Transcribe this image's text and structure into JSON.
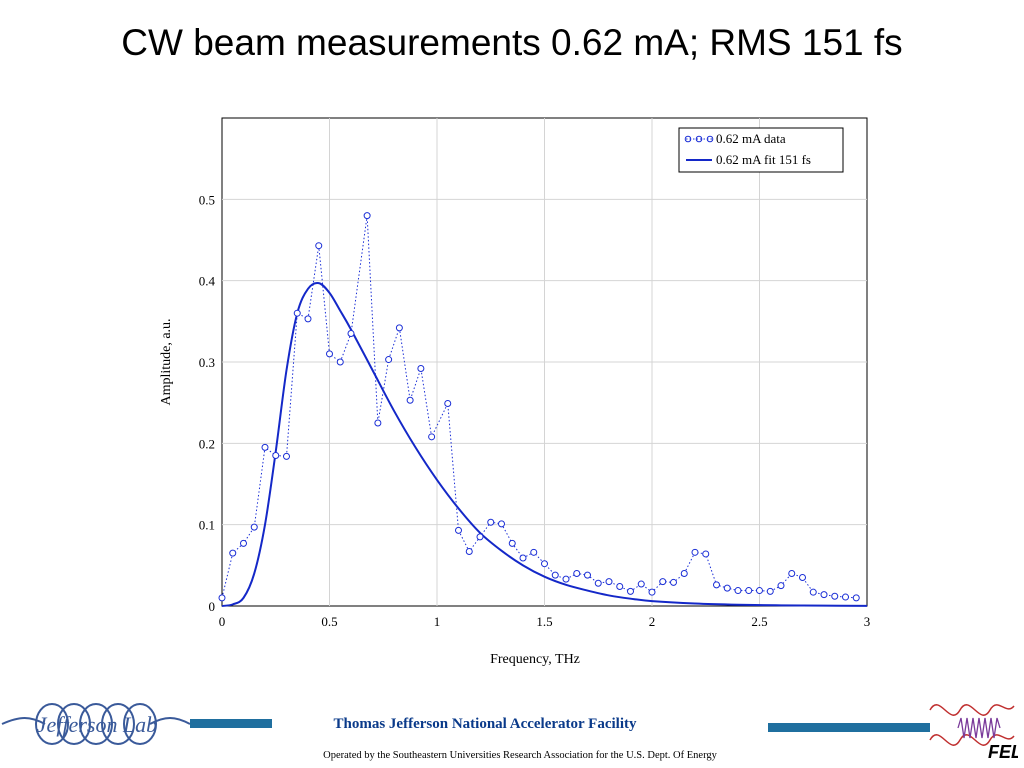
{
  "slide": {
    "title": "CW beam measurements 0.62 mA; RMS 151 fs"
  },
  "colors": {
    "data_series": "#1a2ed6",
    "fit_series": "#1428c8",
    "footer_bar": "#1f6f9f",
    "lab_name": "#0a3a8a",
    "logo_blue": "#3a5a9a",
    "fel_red": "#c03030",
    "fel_purple": "#7a3a9a"
  },
  "chart_data": {
    "type": "line",
    "title": "",
    "xlabel": "Frequency, THz",
    "ylabel": "Amplitude, a.u.",
    "xlim": [
      0,
      3
    ],
    "ylim": [
      0,
      0.6
    ],
    "xticks": [
      "0",
      "0.5",
      "1",
      "1.5",
      "2",
      "2.5",
      "3"
    ],
    "yticks": [
      "0",
      "0.1",
      "0.2",
      "0.3",
      "0.4",
      "0.5"
    ],
    "grid": true,
    "legend_position": "top-right",
    "series": [
      {
        "name": "0.62 mA data",
        "style": "dotted-line-circles",
        "x": [
          0,
          0.05,
          0.1,
          0.15,
          0.2,
          0.25,
          0.3,
          0.35,
          0.4,
          0.45,
          0.5,
          0.55,
          0.6,
          0.675,
          0.725,
          0.775,
          0.825,
          0.875,
          0.925,
          0.975,
          1.05,
          1.1,
          1.15,
          1.2,
          1.25,
          1.3,
          1.35,
          1.4,
          1.45,
          1.5,
          1.55,
          1.6,
          1.65,
          1.7,
          1.75,
          1.8,
          1.85,
          1.9,
          1.95,
          2.0,
          2.05,
          2.1,
          2.15,
          2.2,
          2.25,
          2.3,
          2.35,
          2.4,
          2.45,
          2.5,
          2.55,
          2.6,
          2.65,
          2.7,
          2.75,
          2.8,
          2.85,
          2.9,
          2.95
        ],
        "y": [
          0.01,
          0.065,
          0.077,
          0.097,
          0.195,
          0.185,
          0.184,
          0.36,
          0.353,
          0.443,
          0.31,
          0.3,
          0.335,
          0.48,
          0.225,
          0.303,
          0.342,
          0.253,
          0.292,
          0.208,
          0.249,
          0.093,
          0.067,
          0.085,
          0.103,
          0.101,
          0.077,
          0.059,
          0.066,
          0.052,
          0.038,
          0.033,
          0.04,
          0.038,
          0.028,
          0.03,
          0.024,
          0.018,
          0.027,
          0.017,
          0.03,
          0.029,
          0.04,
          0.066,
          0.064,
          0.026,
          0.022,
          0.019,
          0.019,
          0.019,
          0.018,
          0.025,
          0.04,
          0.035,
          0.017,
          0.014,
          0.012,
          0.011,
          0.01
        ]
      },
      {
        "name": "0.62 mA fit 151 fs",
        "style": "solid-line",
        "x": [
          0,
          0.05,
          0.1,
          0.15,
          0.2,
          0.25,
          0.3,
          0.35,
          0.4,
          0.45,
          0.5,
          0.55,
          0.6,
          0.7,
          0.8,
          0.9,
          1.0,
          1.1,
          1.2,
          1.3,
          1.4,
          1.5,
          1.6,
          1.7,
          1.8,
          1.9,
          2.0,
          2.2,
          2.4,
          2.6,
          2.8,
          3.0
        ],
        "y": [
          0.0,
          0.002,
          0.01,
          0.04,
          0.1,
          0.19,
          0.29,
          0.36,
          0.39,
          0.397,
          0.385,
          0.363,
          0.34,
          0.29,
          0.24,
          0.195,
          0.155,
          0.12,
          0.09,
          0.068,
          0.05,
          0.036,
          0.026,
          0.019,
          0.013,
          0.009,
          0.006,
          0.003,
          0.0015,
          0.0008,
          0.0004,
          0.0002
        ]
      }
    ]
  },
  "footer": {
    "lab_name": "Thomas Jefferson National Accelerator Facility",
    "operated_by": "Operated by the Southeastern Universities Research Association for the U.S. Dept. Of Energy",
    "left_logo_text": "Jefferson Lab",
    "right_logo_text": "FEL"
  }
}
